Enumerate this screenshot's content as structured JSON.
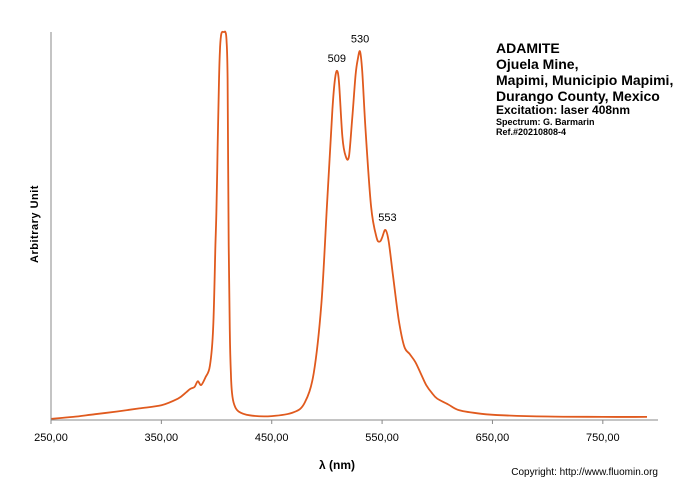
{
  "chart_data": {
    "type": "line",
    "title_lines": [
      "ADAMITE",
      "Ojuela Mine,",
      "Mapimi, Municipio Mapimi,",
      "Durango County, Mexico"
    ],
    "excitation": "Excitation: laser 408nm",
    "spectrum": "Spectrum: G. Barmarin",
    "ref": "Ref.#20210808-4",
    "xlabel": "λ (nm)",
    "ylabel": "Arbitrary Unit",
    "xlim": [
      250,
      800
    ],
    "ylim": [
      0,
      100
    ],
    "x_ticks": [
      "250,00",
      "350,00",
      "450,00",
      "550,00",
      "650,00",
      "750,00"
    ],
    "series": [
      {
        "color": "#E05A1E",
        "x": [
          250,
          270,
          290,
          310,
          330,
          350,
          365,
          372,
          376,
          380,
          383,
          386,
          390,
          394,
          397,
          399,
          400,
          401,
          402,
          403,
          404,
          405,
          406,
          407,
          408,
          409,
          410,
          411,
          412,
          413,
          414,
          416,
          420,
          430,
          450,
          470,
          480,
          488,
          495,
          500,
          503,
          505,
          507,
          509,
          511,
          514,
          517,
          520,
          523,
          526,
          528,
          530,
          532,
          535,
          540,
          545,
          548,
          550,
          553,
          556,
          560,
          565,
          570,
          575,
          580,
          585,
          590,
          595,
          600,
          610,
          620,
          640,
          660,
          700,
          750,
          790
        ],
        "y": [
          0.3,
          0.8,
          1.5,
          2.2,
          3.0,
          3.8,
          5.5,
          7,
          8,
          8.5,
          10,
          9,
          11,
          14,
          24,
          45,
          55,
          70,
          85,
          95,
          99,
          100,
          100,
          100,
          100,
          98,
          88,
          45,
          23,
          12,
          7,
          4,
          2.2,
          1.2,
          1.0,
          2.0,
          4.5,
          12,
          30,
          55,
          70,
          80,
          87,
          90,
          87,
          73,
          68,
          68,
          78,
          89,
          93,
          95,
          90,
          75,
          55,
          47,
          46,
          47,
          49,
          46,
          37,
          26,
          19,
          17,
          15,
          12,
          9,
          7,
          5.5,
          4,
          2.5,
          1.6,
          1.2,
          0.9,
          0.8,
          0.8
        ]
      }
    ],
    "peak_labels": [
      {
        "x": 509,
        "text": "509"
      },
      {
        "x": 530,
        "text": "530"
      },
      {
        "x": 553,
        "text": "553"
      }
    ],
    "grid": false
  },
  "copyright": "Copyright: http://www.fluomin.org"
}
